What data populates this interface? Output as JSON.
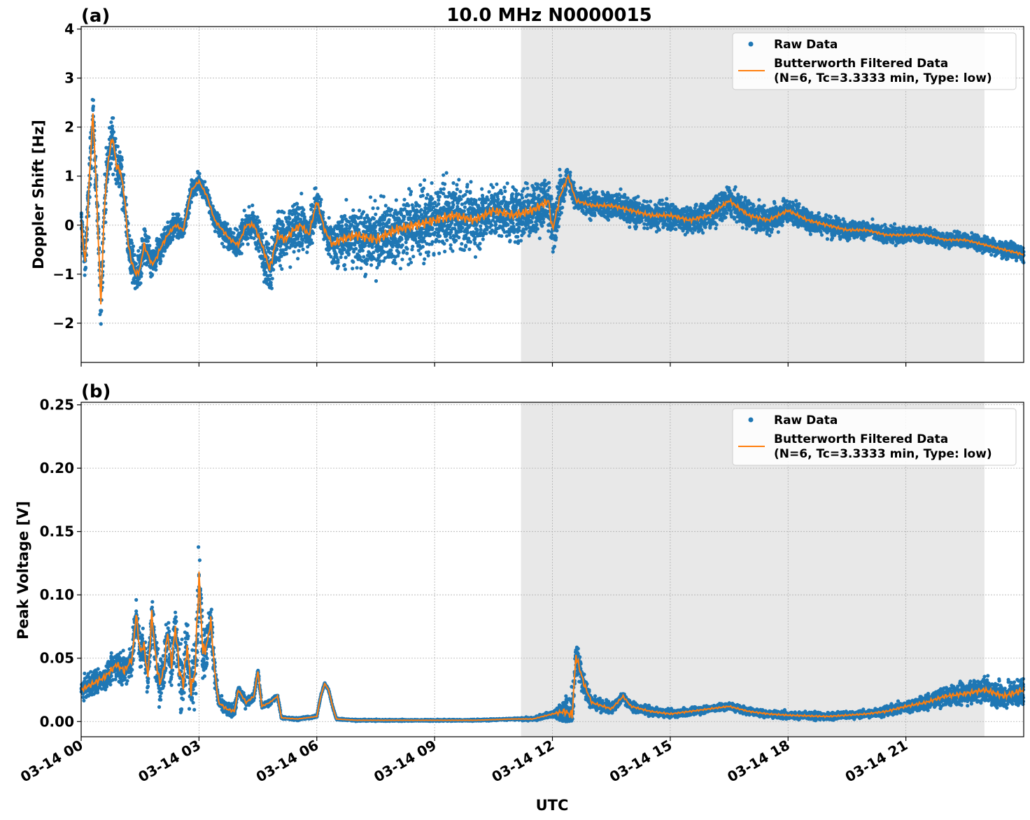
{
  "figure": {
    "title": "10.0 MHz N0000015",
    "xlabel": "UTC",
    "colors": {
      "raw": "#1f77b4",
      "filtered": "#ff7f0e",
      "shade": "#e8e8e8",
      "grid": "#b0b0b0"
    }
  },
  "chart_data": [
    {
      "type": "scatter",
      "panel_label": "(a)",
      "ylabel": "Doppler Shift [Hz]",
      "x_unit": "hours UTC on 03-14",
      "xlim": [
        0,
        24
      ],
      "ylim": [
        -2.8,
        4.05
      ],
      "x_ticks": [
        0,
        3,
        6,
        9,
        12,
        15,
        18,
        21
      ],
      "x_tick_labels": [
        "03-14 00",
        "03-14 03",
        "03-14 06",
        "03-14 09",
        "03-14 12",
        "03-14 15",
        "03-14 18",
        "03-14 21"
      ],
      "y_ticks": [
        -2,
        -1,
        0,
        1,
        2,
        3,
        4
      ],
      "y_tick_labels": [
        "−2",
        "−1",
        "0",
        "1",
        "2",
        "3",
        "4"
      ],
      "grid": true,
      "shaded_x": [
        11.2,
        23.0
      ],
      "legend": {
        "placement": "top-right",
        "entries": [
          {
            "label": "Raw Data",
            "marker": "dot"
          },
          {
            "label": "Butterworth Filtered Data",
            "label2": "(N=6, Tc=3.3333 min, Type: low)",
            "marker": "line"
          }
        ]
      },
      "series": [
        {
          "name": "Butterworth Filtered Data",
          "x": [
            0,
            0.1,
            0.2,
            0.3,
            0.4,
            0.5,
            0.6,
            0.7,
            0.8,
            0.9,
            1.0,
            1.1,
            1.2,
            1.3,
            1.4,
            1.5,
            1.6,
            1.7,
            1.8,
            1.9,
            2.0,
            2.2,
            2.4,
            2.6,
            2.8,
            3.0,
            3.2,
            3.4,
            3.6,
            3.8,
            4.0,
            4.2,
            4.4,
            4.6,
            4.8,
            5.0,
            5.2,
            5.4,
            5.6,
            5.8,
            6.0,
            6.2,
            6.4,
            6.6,
            7.0,
            7.5,
            8.0,
            8.5,
            9.0,
            9.5,
            10.0,
            10.5,
            11.0,
            11.5,
            11.9,
            12.0,
            12.2,
            12.4,
            12.6,
            13.0,
            13.5,
            14.0,
            14.5,
            15.0,
            15.5,
            16.0,
            16.5,
            17.0,
            17.5,
            18.0,
            18.5,
            19.0,
            19.5,
            20.0,
            20.5,
            21.0,
            21.5,
            22.0,
            22.5,
            23.0,
            23.5,
            24.0
          ],
          "y": [
            0.1,
            -0.8,
            0.8,
            2.3,
            0.5,
            -1.6,
            0.5,
            1.4,
            1.8,
            1.2,
            1.1,
            0.6,
            -0.4,
            -0.8,
            -1.0,
            -0.9,
            -0.4,
            -0.6,
            -0.8,
            -0.7,
            -0.5,
            -0.2,
            0.0,
            -0.1,
            0.7,
            0.9,
            0.6,
            0.1,
            -0.1,
            -0.3,
            -0.4,
            0.0,
            0.0,
            -0.4,
            -0.9,
            -0.2,
            -0.3,
            -0.1,
            0.0,
            -0.2,
            0.5,
            -0.1,
            -0.4,
            -0.3,
            -0.2,
            -0.3,
            -0.1,
            0.0,
            0.1,
            0.2,
            0.1,
            0.3,
            0.2,
            0.3,
            0.5,
            -0.1,
            0.6,
            1.0,
            0.5,
            0.4,
            0.4,
            0.3,
            0.2,
            0.2,
            0.1,
            0.2,
            0.5,
            0.2,
            0.1,
            0.3,
            0.1,
            0.0,
            -0.1,
            -0.1,
            -0.2,
            -0.2,
            -0.2,
            -0.3,
            -0.3,
            -0.4,
            -0.5,
            -0.6
          ]
        },
        {
          "name": "Raw Data",
          "spread": [
            [
              0,
              0.6
            ],
            [
              0.4,
              1.0
            ],
            [
              0.6,
              0.9
            ],
            [
              1.2,
              0.7
            ],
            [
              2.5,
              0.4
            ],
            [
              3.0,
              0.3
            ],
            [
              4.5,
              0.6
            ],
            [
              5.0,
              1.0
            ],
            [
              5.5,
              0.9
            ],
            [
              6.2,
              0.5
            ],
            [
              6.5,
              1.0
            ],
            [
              8.0,
              1.2
            ],
            [
              10.5,
              1.0
            ],
            [
              12.0,
              1.0
            ],
            [
              12.4,
              0.4
            ],
            [
              14.0,
              0.5
            ],
            [
              17.0,
              0.5
            ],
            [
              20.0,
              0.3
            ],
            [
              22.5,
              0.25
            ],
            [
              24.0,
              0.3
            ]
          ]
        }
      ]
    },
    {
      "type": "scatter",
      "panel_label": "(b)",
      "ylabel": "Peak Voltage [V]",
      "x_unit": "hours UTC on 03-14",
      "xlim": [
        0,
        24
      ],
      "ylim": [
        -0.012,
        0.252
      ],
      "x_ticks": [
        0,
        3,
        6,
        9,
        12,
        15,
        18,
        21
      ],
      "x_tick_labels": [
        "03-14 00",
        "03-14 03",
        "03-14 06",
        "03-14 09",
        "03-14 12",
        "03-14 15",
        "03-14 18",
        "03-14 21"
      ],
      "y_ticks": [
        0.0,
        0.05,
        0.1,
        0.15,
        0.2,
        0.25
      ],
      "y_tick_labels": [
        "0.00",
        "0.05",
        "0.10",
        "0.15",
        "0.20",
        "0.25"
      ],
      "grid": true,
      "shaded_x": [
        11.2,
        23.0
      ],
      "legend": {
        "placement": "top-right",
        "entries": [
          {
            "label": "Raw Data",
            "marker": "dot"
          },
          {
            "label": "Butterworth Filtered Data",
            "label2": "(N=6, Tc=3.3333 min, Type: low)",
            "marker": "line"
          }
        ]
      },
      "series": [
        {
          "name": "Butterworth Filtered Data",
          "x": [
            0,
            0.3,
            0.6,
            0.9,
            1.1,
            1.3,
            1.4,
            1.5,
            1.6,
            1.7,
            1.8,
            1.9,
            2.0,
            2.1,
            2.2,
            2.3,
            2.4,
            2.5,
            2.6,
            2.7,
            2.8,
            2.9,
            3.0,
            3.1,
            3.2,
            3.3,
            3.4,
            3.5,
            3.7,
            3.9,
            4.0,
            4.2,
            4.4,
            4.5,
            4.6,
            4.8,
            5.0,
            5.1,
            5.5,
            6.0,
            6.1,
            6.2,
            6.3,
            6.4,
            6.5,
            7.0,
            8.0,
            9.0,
            10.0,
            11.0,
            11.5,
            12.0,
            12.3,
            12.5,
            12.6,
            12.8,
            13.0,
            13.5,
            13.8,
            14.0,
            14.5,
            15.0,
            15.5,
            16.0,
            16.5,
            17.0,
            17.5,
            18.0,
            19.0,
            20.0,
            20.5,
            21.0,
            21.5,
            22.0,
            22.5,
            23.0,
            23.5,
            24.0
          ],
          "y": [
            0.025,
            0.03,
            0.035,
            0.045,
            0.04,
            0.05,
            0.085,
            0.055,
            0.06,
            0.035,
            0.085,
            0.05,
            0.03,
            0.04,
            0.07,
            0.045,
            0.075,
            0.04,
            0.03,
            0.06,
            0.025,
            0.04,
            0.115,
            0.055,
            0.06,
            0.08,
            0.04,
            0.015,
            0.01,
            0.008,
            0.025,
            0.015,
            0.02,
            0.04,
            0.012,
            0.015,
            0.02,
            0.003,
            0.002,
            0.004,
            0.02,
            0.03,
            0.025,
            0.012,
            0.002,
            0.001,
            0.001,
            0.001,
            0.001,
            0.002,
            0.002,
            0.006,
            0.008,
            0.005,
            0.052,
            0.03,
            0.015,
            0.01,
            0.02,
            0.012,
            0.008,
            0.006,
            0.008,
            0.01,
            0.012,
            0.008,
            0.006,
            0.005,
            0.004,
            0.006,
            0.008,
            0.012,
            0.015,
            0.02,
            0.022,
            0.025,
            0.02,
            0.025
          ]
        },
        {
          "name": "Raw Data",
          "spread": [
            [
              0,
              0.015
            ],
            [
              1.0,
              0.02
            ],
            [
              2.0,
              0.03
            ],
            [
              3.0,
              0.05
            ],
            [
              3.5,
              0.01
            ],
            [
              5.1,
              0.002
            ],
            [
              6.5,
              0.001
            ],
            [
              11.0,
              0.001
            ],
            [
              12.0,
              0.004
            ],
            [
              12.5,
              0.03
            ],
            [
              13.0,
              0.008
            ],
            [
              15.0,
              0.005
            ],
            [
              20.0,
              0.005
            ],
            [
              22.0,
              0.012
            ],
            [
              24.0,
              0.02
            ]
          ]
        }
      ]
    }
  ]
}
